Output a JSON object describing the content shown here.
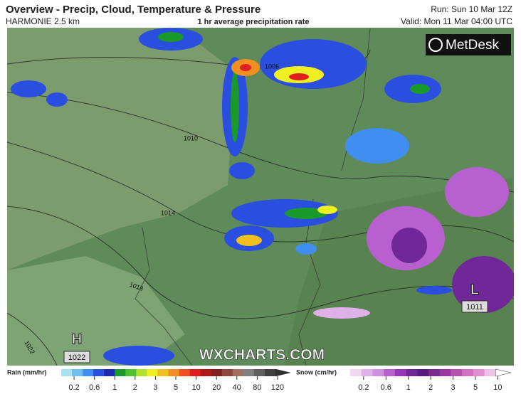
{
  "header": {
    "title": "Overview - Precip, Cloud, Temperature & Pressure",
    "model": "HARMONIE 2.5 km",
    "subtitle": "1 hr average precipitation rate",
    "run": "Run: Sun 10 Mar 12Z",
    "valid": "Valid: Mon 11 Mar 04:00 UTC",
    "logo": "MetDesk"
  },
  "map": {
    "isobars": [
      1006,
      1010,
      1014,
      1018,
      1022
    ],
    "high": {
      "letter": "H",
      "pressure": 1022
    },
    "low": {
      "letter": "L",
      "pressure": 1011
    },
    "watermark": "WXCHARTS.COM"
  },
  "legend": {
    "rain": {
      "label": "Rain (mm/hr)",
      "ticks": [
        0.2,
        0.6,
        1,
        2,
        3,
        5,
        10,
        20,
        40,
        80,
        120
      ],
      "colors": [
        "#a9e0f0",
        "#6fc0f0",
        "#3f8ef0",
        "#2a4fe0",
        "#1f2ab0",
        "#1a9a2a",
        "#50c030",
        "#b0e030",
        "#f0f020",
        "#f0c020",
        "#f09020",
        "#f05020",
        "#e02020",
        "#b01818",
        "#802020",
        "#904838",
        "#a07060",
        "#808080",
        "#606060",
        "#404040",
        "#303030"
      ]
    },
    "snow": {
      "label": "Snow (cm/hr)",
      "ticks": [
        0.2,
        0.6,
        1,
        2,
        3,
        5,
        10
      ],
      "colors": [
        "#f0d8f0",
        "#e0b0e8",
        "#d090e0",
        "#b860d0",
        "#9838b8",
        "#702898",
        "#5a1a80",
        "#7a2a90",
        "#9a3aa0",
        "#b850b0",
        "#d070c0",
        "#e090d0",
        "#f0c0e8",
        "#ffffff"
      ]
    }
  }
}
